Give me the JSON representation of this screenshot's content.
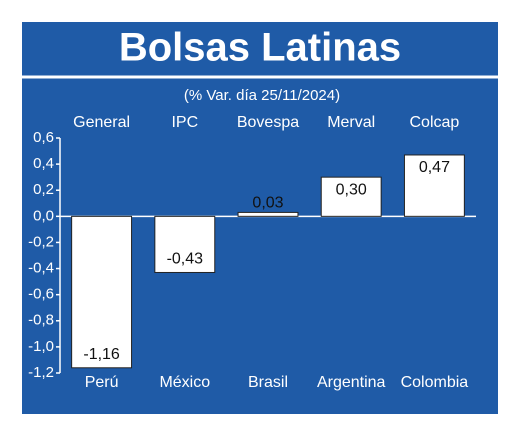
{
  "chart_data": {
    "type": "bar",
    "title": "Bolsas Latinas",
    "subtitle": "(% Var. día 25/11/2024)",
    "categories": [
      "Perú",
      "México",
      "Brasil",
      "Argentina",
      "Colombia"
    ],
    "indices": [
      "General",
      "IPC",
      "Bovespa",
      "Merval",
      "Colcap"
    ],
    "values": [
      -1.16,
      -0.43,
      0.03,
      0.3,
      0.47
    ],
    "value_labels": [
      "-1,16",
      "-0,43",
      "0,03",
      "0,30",
      "0,47"
    ],
    "color": "#ffffff",
    "ylim": [
      -1.2,
      0.6
    ],
    "yticks": [
      {
        "value": 0.6,
        "label": "0,6"
      },
      {
        "value": 0.4,
        "label": "0,4"
      },
      {
        "value": 0.2,
        "label": "0,2"
      },
      {
        "value": 0.0,
        "label": "0,0"
      },
      {
        "value": -0.2,
        "label": "-0,2"
      },
      {
        "value": -0.4,
        "label": "-0,4"
      },
      {
        "value": -0.6,
        "label": "-0,6"
      },
      {
        "value": -0.8,
        "label": "-0,8"
      },
      {
        "value": -1.0,
        "label": "-1,0"
      },
      {
        "value": -1.2,
        "label": "-1,2"
      }
    ]
  }
}
